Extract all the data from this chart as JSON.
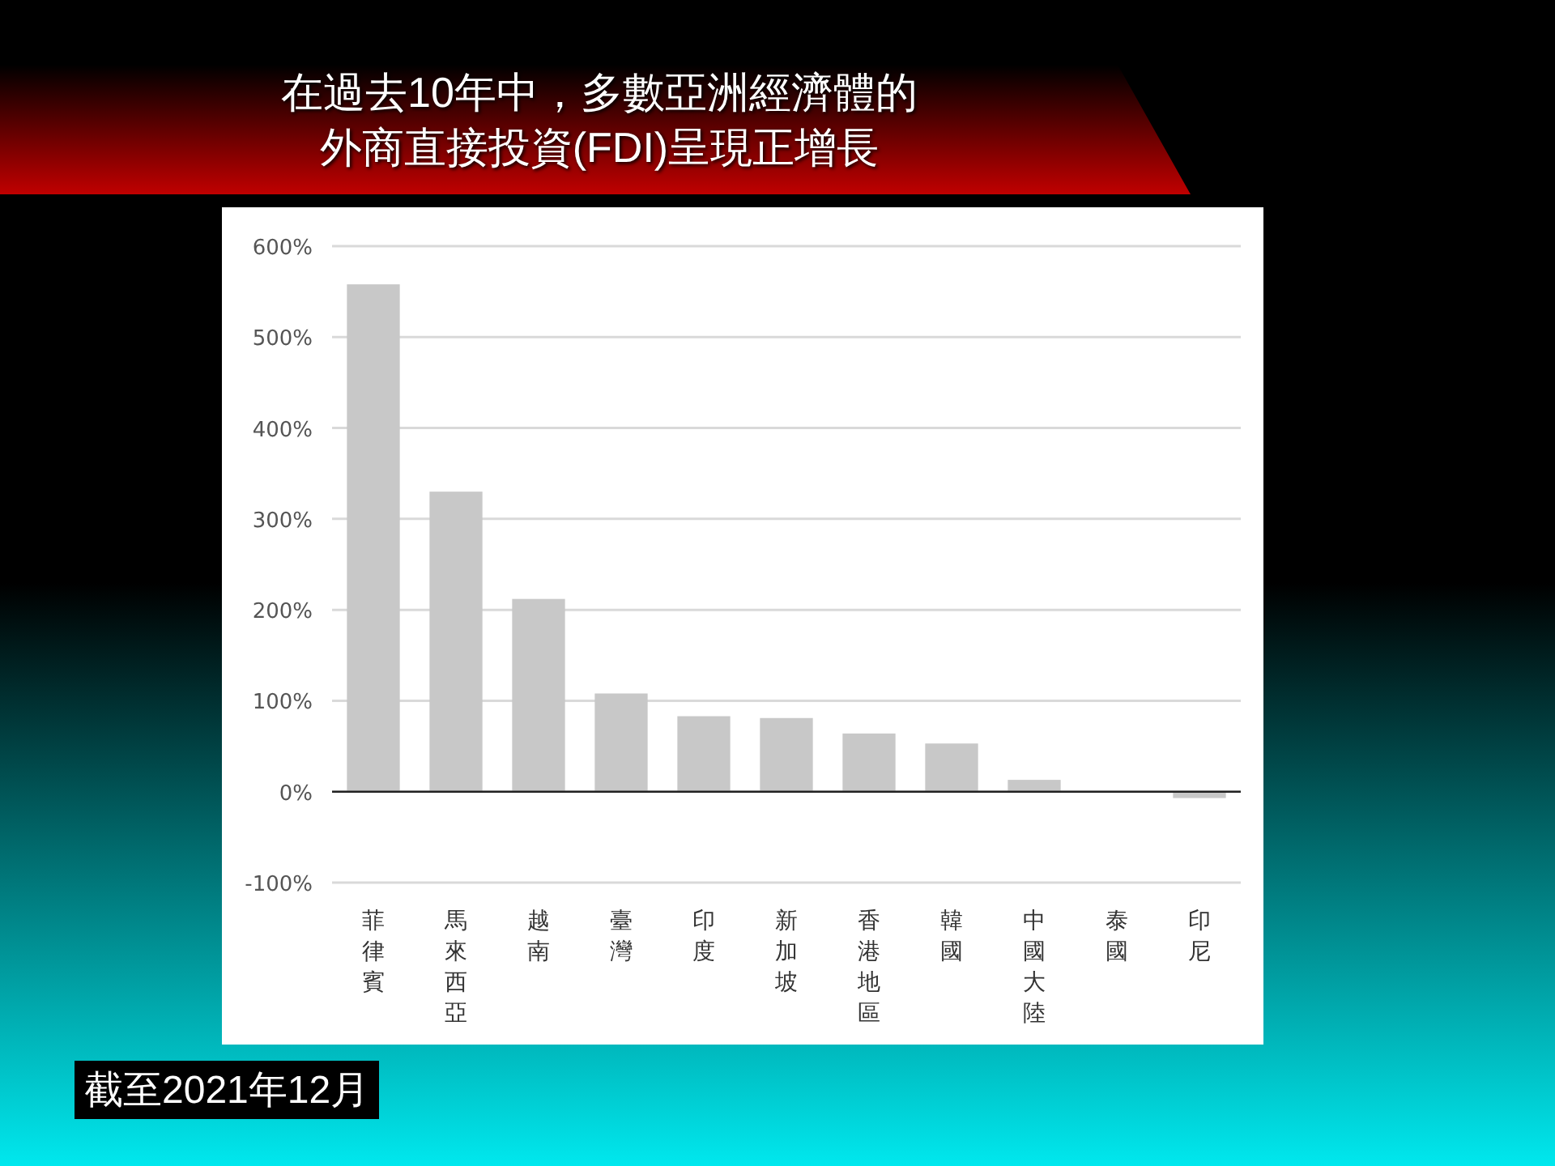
{
  "chart_data": {
    "type": "bar",
    "title": "在過去10年中，多數亞洲經濟體的",
    "subtitle": "外商直接投資(FDI)呈現正增長",
    "categories": [
      "菲律賓",
      "馬來西亞",
      "越南",
      "臺灣",
      "印度",
      "新加坡",
      "香港地區",
      "韓國",
      "中國大陸",
      "泰國",
      "印尼"
    ],
    "values": [
      558,
      330,
      212,
      108,
      83,
      81,
      64,
      53,
      13,
      0,
      -7
    ],
    "color": "#c8c8c8",
    "ylim": [
      -100,
      600
    ],
    "yticks": [
      {
        "value": -100,
        "label": "-100%"
      },
      {
        "value": 0,
        "label": "0%"
      },
      {
        "value": 100,
        "label": "100%"
      },
      {
        "value": 200,
        "label": "200%"
      },
      {
        "value": 300,
        "label": "300%"
      },
      {
        "value": 400,
        "label": "400%"
      },
      {
        "value": 500,
        "label": "500%"
      },
      {
        "value": 600,
        "label": "600%"
      }
    ],
    "grid": "y",
    "annotations": [
      "截至2021年12月"
    ]
  }
}
